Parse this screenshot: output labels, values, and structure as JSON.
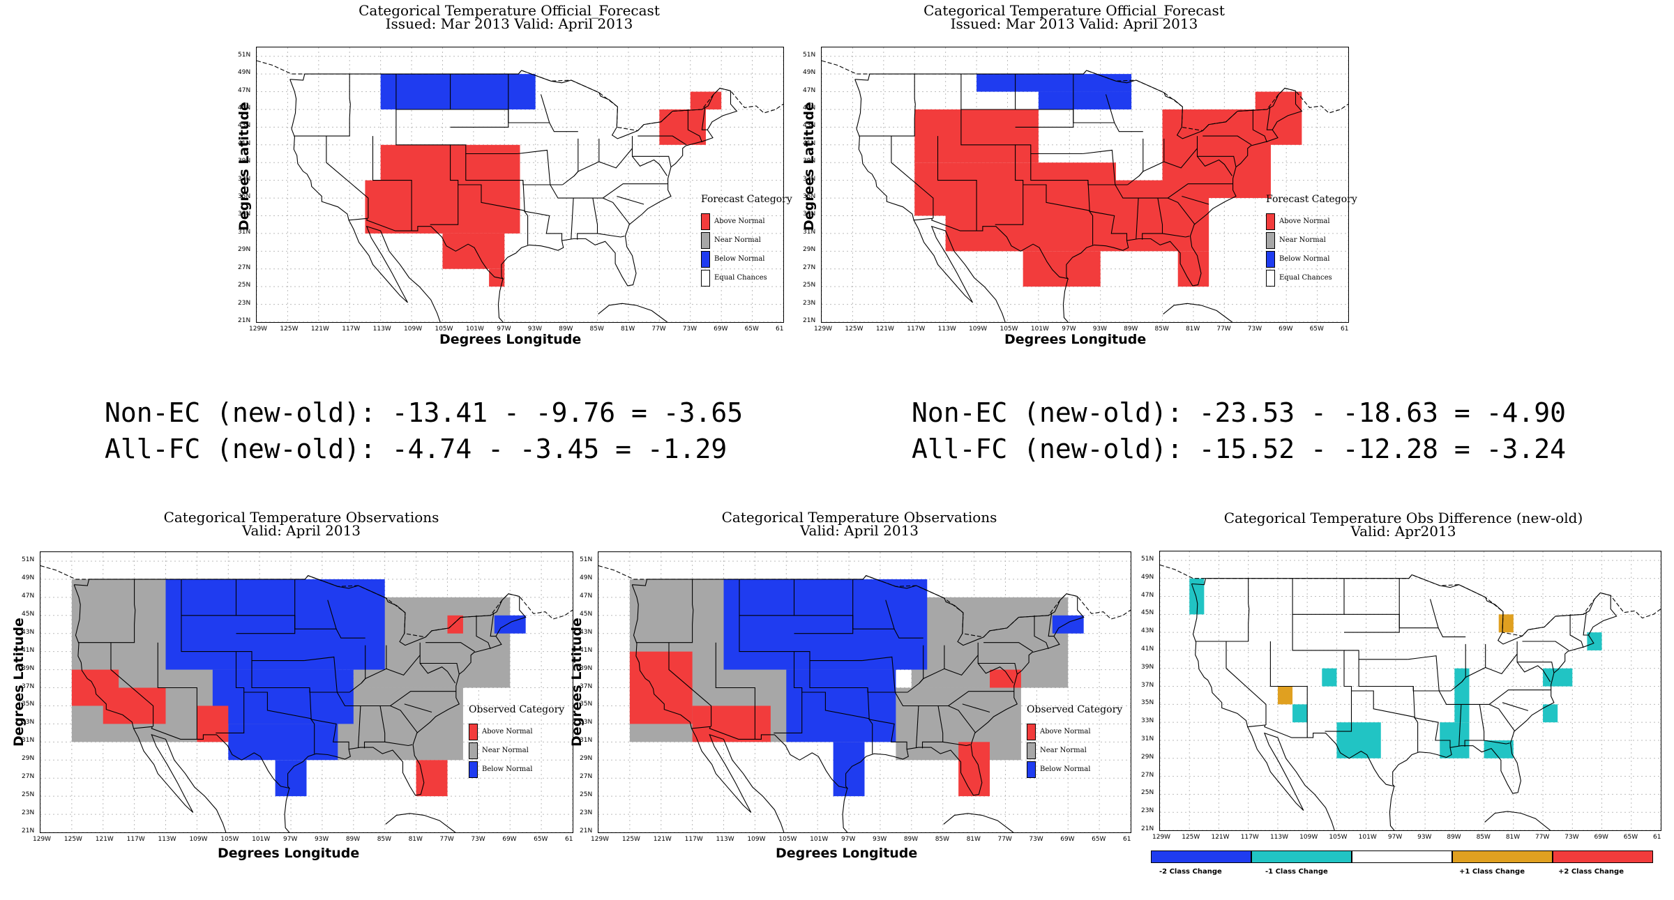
{
  "colors": {
    "above": "#f23c3c",
    "near": "#a7a7a7",
    "below": "#1f3cf0",
    "equal": "#ffffff",
    "minus2": "#1f3cf0",
    "minus1": "#21c4c4",
    "plus1": "#e0a020",
    "plus2": "#f23c3c"
  },
  "lat_ticks": [
    "51N",
    "49N",
    "47N",
    "45N",
    "43N",
    "41N",
    "39N",
    "37N",
    "35N",
    "33N",
    "31N",
    "29N",
    "27N",
    "25N",
    "23N",
    "21N"
  ],
  "lon_ticks": [
    "129W",
    "125W",
    "121W",
    "117W",
    "113W",
    "109W",
    "105W",
    "101W",
    "97W",
    "93W",
    "89W",
    "85W",
    "81W",
    "77W",
    "73W",
    "69W",
    "65W",
    "61"
  ],
  "axis": {
    "ylabel": "Degrees Latitude",
    "xlabel": "Degrees Longitude"
  },
  "legend_forecast": {
    "title": "Forecast Category",
    "items": [
      "Above Normal",
      "Near Normal",
      "Below Normal",
      "Equal Chances"
    ]
  },
  "legend_observed": {
    "title": "Observed Category",
    "items": [
      "Above Normal",
      "Near Normal",
      "Below Normal"
    ]
  },
  "panels": {
    "fc_old": {
      "title1": "Categorical Temperature Official_Forecast",
      "title2": "Issued: Mar 2013 Valid: April 2013"
    },
    "fc_new": {
      "title1": "Categorical Temperature Official_Forecast",
      "title2": "Issued: Mar 2013 Valid: April 2013"
    },
    "obs_old": {
      "title1": "Categorical Temperature Observations",
      "title2": "Valid: April 2013"
    },
    "obs_new": {
      "title1": "Categorical Temperature Observations",
      "title2": "Valid: April 2013"
    },
    "diff": {
      "title1": "Categorical Temperature Obs Difference (new-old)",
      "title2": "Valid: Apr2013"
    }
  },
  "stats": {
    "left_line1": "Non-EC (new-old): -13.41 - -9.76 = -3.65",
    "left_line2": "All-FC (new-old): -4.74 - -3.45 = -1.29",
    "right_line1": "Non-EC (new-old): -23.53 - -18.63 = -4.90",
    "right_line2": "All-FC (new-old): -15.52 - -12.28 = -3.24"
  },
  "diff_legend": [
    "-2 Class Change",
    "-1 Class Change",
    "+1 Class Change",
    "+2 Class Change"
  ],
  "regions": {
    "fc_old": [
      {
        "cat": "below",
        "lon": [
          -113,
          -93
        ],
        "lat": [
          45,
          49
        ]
      },
      {
        "cat": "above",
        "lon": [
          -113,
          -95
        ],
        "lat": [
          35,
          41
        ]
      },
      {
        "cat": "above",
        "lon": [
          -115,
          -95
        ],
        "lat": [
          31,
          37
        ]
      },
      {
        "cat": "above",
        "lon": [
          -105,
          -97
        ],
        "lat": [
          27,
          31
        ]
      },
      {
        "cat": "above",
        "lon": [
          -99,
          -97
        ],
        "lat": [
          25,
          27
        ]
      },
      {
        "cat": "above",
        "lon": [
          -77,
          -71
        ],
        "lat": [
          41,
          45
        ]
      },
      {
        "cat": "above",
        "lon": [
          -73,
          -69
        ],
        "lat": [
          45,
          47
        ]
      }
    ],
    "fc_new": [
      {
        "cat": "below",
        "lon": [
          -109,
          -89
        ],
        "lat": [
          47,
          49
        ]
      },
      {
        "cat": "below",
        "lon": [
          -101,
          -89
        ],
        "lat": [
          45,
          47
        ]
      },
      {
        "cat": "above",
        "lon": [
          -117,
          -101
        ],
        "lat": [
          39,
          45
        ]
      },
      {
        "cat": "above",
        "lon": [
          -117,
          -91
        ],
        "lat": [
          33,
          39
        ]
      },
      {
        "cat": "above",
        "lon": [
          -113,
          -79
        ],
        "lat": [
          29,
          37
        ]
      },
      {
        "cat": "above",
        "lon": [
          -85,
          -71
        ],
        "lat": [
          35,
          45
        ]
      },
      {
        "cat": "above",
        "lon": [
          -73,
          -67
        ],
        "lat": [
          41,
          47
        ]
      },
      {
        "cat": "above",
        "lon": [
          -103,
          -93
        ],
        "lat": [
          25,
          29
        ]
      },
      {
        "cat": "above",
        "lon": [
          -83,
          -79
        ],
        "lat": [
          25,
          29
        ]
      }
    ],
    "obs_old": [
      {
        "cat": "near",
        "lon": [
          -125,
          -91
        ],
        "lat": [
          31,
          49
        ]
      },
      {
        "cat": "near",
        "lon": [
          -89,
          -69
        ],
        "lat": [
          37,
          47
        ]
      },
      {
        "cat": "near",
        "lon": [
          -91,
          -75
        ],
        "lat": [
          29,
          37
        ]
      },
      {
        "cat": "below",
        "lon": [
          -113,
          -85
        ],
        "lat": [
          39,
          49
        ]
      },
      {
        "cat": "below",
        "lon": [
          -107,
          -89
        ],
        "lat": [
          33,
          39
        ]
      },
      {
        "cat": "below",
        "lon": [
          -105,
          -91
        ],
        "lat": [
          29,
          33
        ]
      },
      {
        "cat": "below",
        "lon": [
          -99,
          -95
        ],
        "lat": [
          25,
          29
        ]
      },
      {
        "cat": "above",
        "lon": [
          -125,
          -119
        ],
        "lat": [
          35,
          39
        ]
      },
      {
        "cat": "above",
        "lon": [
          -121,
          -113
        ],
        "lat": [
          33,
          37
        ]
      },
      {
        "cat": "above",
        "lon": [
          -109,
          -105
        ],
        "lat": [
          31,
          35
        ]
      },
      {
        "cat": "above",
        "lon": [
          -81,
          -77
        ],
        "lat": [
          25,
          29
        ]
      },
      {
        "cat": "above",
        "lon": [
          -77,
          -75
        ],
        "lat": [
          43,
          45
        ]
      },
      {
        "cat": "below",
        "lon": [
          -71,
          -67
        ],
        "lat": [
          43,
          45
        ]
      }
    ],
    "obs_new": [
      {
        "cat": "near",
        "lon": [
          -125,
          -91
        ],
        "lat": [
          31,
          49
        ]
      },
      {
        "cat": "near",
        "lon": [
          -89,
          -69
        ],
        "lat": [
          37,
          47
        ]
      },
      {
        "cat": "near",
        "lon": [
          -91,
          -75
        ],
        "lat": [
          29,
          37
        ]
      },
      {
        "cat": "below",
        "lon": [
          -113,
          -87
        ],
        "lat": [
          39,
          49
        ]
      },
      {
        "cat": "below",
        "lon": [
          -105,
          -91
        ],
        "lat": [
          31,
          39
        ]
      },
      {
        "cat": "below",
        "lon": [
          -99,
          -95
        ],
        "lat": [
          25,
          31
        ]
      },
      {
        "cat": "above",
        "lon": [
          -125,
          -117
        ],
        "lat": [
          33,
          41
        ]
      },
      {
        "cat": "above",
        "lon": [
          -117,
          -107
        ],
        "lat": [
          31,
          35
        ]
      },
      {
        "cat": "above",
        "lon": [
          -83,
          -79
        ],
        "lat": [
          25,
          31
        ]
      },
      {
        "cat": "above",
        "lon": [
          -79,
          -75
        ],
        "lat": [
          37,
          39
        ]
      },
      {
        "cat": "below",
        "lon": [
          -71,
          -67
        ],
        "lat": [
          43,
          45
        ]
      }
    ],
    "diff": [
      {
        "cat": "minus1",
        "lon": [
          -125,
          -123
        ],
        "lat": [
          45,
          49
        ]
      },
      {
        "cat": "plus1",
        "lon": [
          -113,
          -111
        ],
        "lat": [
          35,
          37
        ]
      },
      {
        "cat": "minus1",
        "lon": [
          -111,
          -109
        ],
        "lat": [
          33,
          35
        ]
      },
      {
        "cat": "minus1",
        "lon": [
          -107,
          -105
        ],
        "lat": [
          37,
          39
        ]
      },
      {
        "cat": "minus1",
        "lon": [
          -105,
          -99
        ],
        "lat": [
          29,
          33
        ]
      },
      {
        "cat": "minus1",
        "lon": [
          -91,
          -87
        ],
        "lat": [
          29,
          33
        ]
      },
      {
        "cat": "minus1",
        "lon": [
          -89,
          -87
        ],
        "lat": [
          33,
          39
        ]
      },
      {
        "cat": "minus1",
        "lon": [
          -85,
          -81
        ],
        "lat": [
          29,
          31
        ]
      },
      {
        "cat": "minus1",
        "lon": [
          -77,
          -73
        ],
        "lat": [
          37,
          39
        ]
      },
      {
        "cat": "minus1",
        "lon": [
          -77,
          -75
        ],
        "lat": [
          33,
          35
        ]
      },
      {
        "cat": "plus1",
        "lon": [
          -83,
          -81
        ],
        "lat": [
          43,
          45
        ]
      },
      {
        "cat": "minus1",
        "lon": [
          -71,
          -69
        ],
        "lat": [
          41,
          43
        ]
      }
    ]
  }
}
